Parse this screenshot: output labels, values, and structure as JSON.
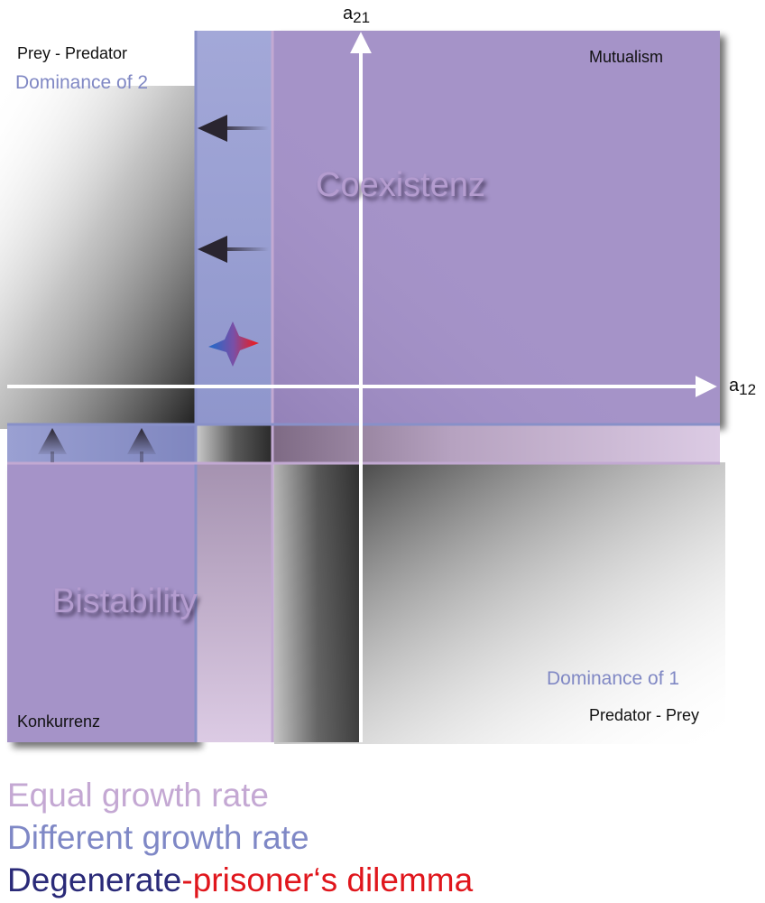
{
  "axes": {
    "y_label": "a",
    "y_sub": "21",
    "x_label": "a",
    "x_sub": "12"
  },
  "quadrant_labels": {
    "top_left": "Prey - Predator",
    "top_right": "Mutualism",
    "bottom_left": "Konkurrenz",
    "bottom_right": "Predator - Prey"
  },
  "dominance": {
    "of_2": "Dominance of 2",
    "of_1": "Dominance of 1"
  },
  "regions": {
    "coexistence": "Coexistenz",
    "bistability": "Bistability"
  },
  "legend": {
    "equal": "Equal growth rate",
    "different": "Different growth rate",
    "degenerate": "Degenerate",
    "prisoners": "-prisoner‘s dilemma"
  },
  "colors": {
    "purple_region": "#a593c8",
    "blue_band": "#a3a8d8",
    "pink_band": "#d5c3de",
    "equal_growth": "#c4a8d3",
    "different_growth": "#7f88c6",
    "degenerate": "#2a2a78",
    "prisoners_dilemma": "#e0161c",
    "star_left": "#2f66c4",
    "star_right": "#e0212c"
  }
}
